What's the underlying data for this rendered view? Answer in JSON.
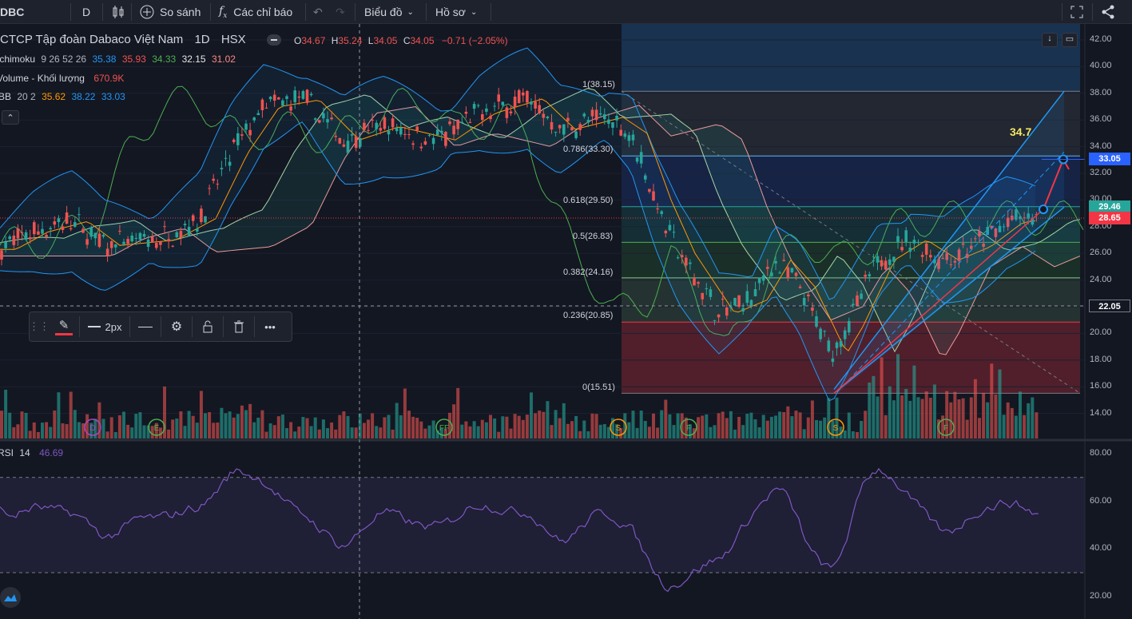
{
  "toolbar": {
    "symbol": "DBC",
    "interval": "D",
    "compare_label": "So sánh",
    "indicators_label": "Các chỉ báo",
    "chart_type_label": "Biểu đồ",
    "profile_label": "Hồ sơ"
  },
  "legend": {
    "title": "CTCP Tập đoàn Dabaco Việt Nam",
    "timeframe": "1D",
    "exchange": "HSX",
    "ohlc": {
      "o_label": "O",
      "o": "34.67",
      "h_label": "H",
      "h": "35.24",
      "l_label": "L",
      "l": "34.05",
      "c_label": "C",
      "c": "34.05",
      "change": "−0.71 (−2.05%)"
    },
    "ichimoku": {
      "name": "Ichimoku",
      "params": "9 26 52 26",
      "v1": "35.38",
      "v2": "35.93",
      "v3": "34.33",
      "v4": "32.15",
      "v5": "31.02"
    },
    "volume": {
      "name": "Volume - Khối lượng",
      "value": "670.9K"
    },
    "bb": {
      "name": "BB",
      "params": "20 2",
      "v1": "35.62",
      "v2": "38.22",
      "v3": "33.03"
    },
    "rsi": {
      "name": "RSI",
      "params": "14",
      "value": "46.69"
    }
  },
  "fib_levels": [
    {
      "label": "1(38.15)",
      "color": "#787b86"
    },
    {
      "label": "0.786(33.30)",
      "color": "#64b5f6"
    },
    {
      "label": "0.618(29.50)",
      "color": "#26a69a"
    },
    {
      "label": "0.5(26.83)",
      "color": "#4caf50"
    },
    {
      "label": "0.382(24.16)",
      "color": "#81c784"
    },
    {
      "label": "0.236(20.85)",
      "color": "#f23645"
    },
    {
      "label": "0(15.51)",
      "color": "#787b86"
    }
  ],
  "annotation_text": "34.7",
  "price_axis": [
    "42.00",
    "40.00",
    "38.00",
    "36.00",
    "34.00",
    "32.00",
    "30.00",
    "28.00",
    "26.00",
    "24.00",
    "22.00",
    "20.00",
    "18.00",
    "16.00",
    "14.00"
  ],
  "rsi_axis": [
    "80.00",
    "60.00",
    "40.00",
    "20.00"
  ],
  "price_labels": [
    {
      "text": "33.05",
      "color": "#2962ff"
    },
    {
      "text": "29.46",
      "color": "#26a69a"
    },
    {
      "text": "28.65",
      "color": "#f23645"
    },
    {
      "text": "22.05",
      "color": "#131722"
    }
  ],
  "drawing_toolbar": {
    "width_label": "2px"
  },
  "event_markers": [
    "D",
    "E",
    "FF",
    "S",
    "F",
    "S",
    "F"
  ],
  "colors": {
    "up": "#26a69a",
    "down": "#ef5350",
    "bg": "#131722",
    "rsi_line": "#7e57c2"
  }
}
